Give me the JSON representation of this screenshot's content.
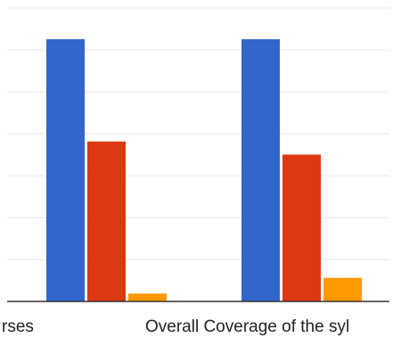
{
  "chart_data": {
    "type": "bar",
    "categories": [
      "rses",
      "Overall Coverage of the syl"
    ],
    "series": [
      {
        "color": "#3366cc",
        "values": [
          100,
          100
        ]
      },
      {
        "color": "#dc3912",
        "values": [
          61,
          56
        ]
      },
      {
        "color": "#ff9900",
        "values": [
          3,
          9
        ]
      }
    ],
    "ylim": [
      0,
      100
    ],
    "grid": true,
    "title": "",
    "xlabel": "",
    "ylabel": ""
  }
}
